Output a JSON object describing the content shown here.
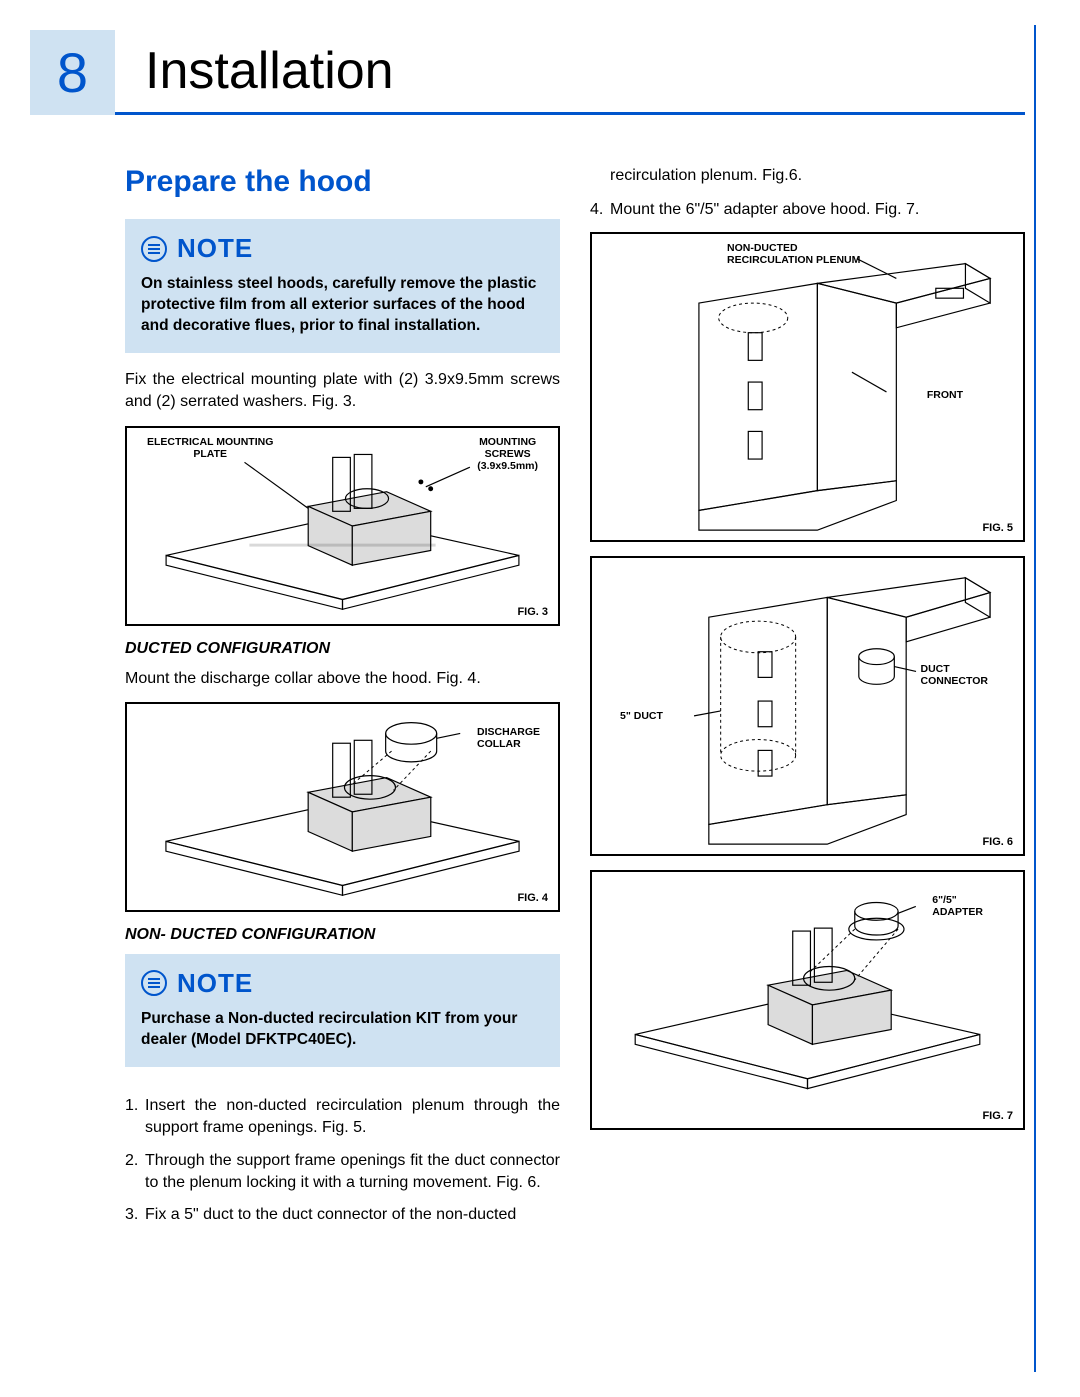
{
  "page_number": "8",
  "chapter_title": "Installation",
  "section_title": "Prepare the hood",
  "note_label": "NOTE",
  "note1_body": "On stainless steel hoods, carefully remove the plastic protective film from all exterior surfaces of the hood and decorative flues, prior to final installation.",
  "para1": "Fix the electrical mounting plate with (2) 3.9x9.5mm screws and (2) serrated washers. Fig. 3.",
  "fig3": {
    "caption": "FIG. 3",
    "label_plate": "ELECTRICAL MOUNTING\nPLATE",
    "label_screws": "MOUNTING\nSCREWS\n(3.9x9.5mm)"
  },
  "sub_ducted": "DUCTED CONFIGURATION",
  "para_ducted": "Mount the discharge collar above the hood. Fig. 4.",
  "fig4": {
    "caption": "FIG. 4",
    "label_collar": "DISCHARGE\nCOLLAR"
  },
  "sub_nonducted": "NON- DUCTED CONFIGURATION",
  "note2_body": "Purchase a Non-ducted recirculation KIT from your dealer (Model DFKTPC40EC).",
  "steps": [
    "Insert the non-ducted recirculation plenum through the support frame openings. Fig. 5.",
    "Through the support frame openings fit the duct connector to the plenum locking it with a turning movement. Fig. 6.",
    "Fix a 5\" duct to the duct connector of the non-ducted"
  ],
  "rcol_top1": "recirculation plenum. Fig.6.",
  "rcol_step4": "Mount the 6\"/5\" adapter above hood. Fig. 7.",
  "fig5": {
    "caption": "FIG. 5",
    "label_plenum": "NON-DUCTED\nRECIRCULATION PLENUM",
    "label_front": "FRONT"
  },
  "fig6": {
    "caption": "FIG. 6",
    "label_connector": "DUCT\nCONNECTOR",
    "label_duct": "5\" DUCT"
  },
  "fig7": {
    "caption": "FIG. 7",
    "label_adapter": "6\"/5\"\nADAPTER"
  },
  "colors": {
    "accent": "#0055cc",
    "tint": "#cfe2f2",
    "text": "#000000"
  }
}
